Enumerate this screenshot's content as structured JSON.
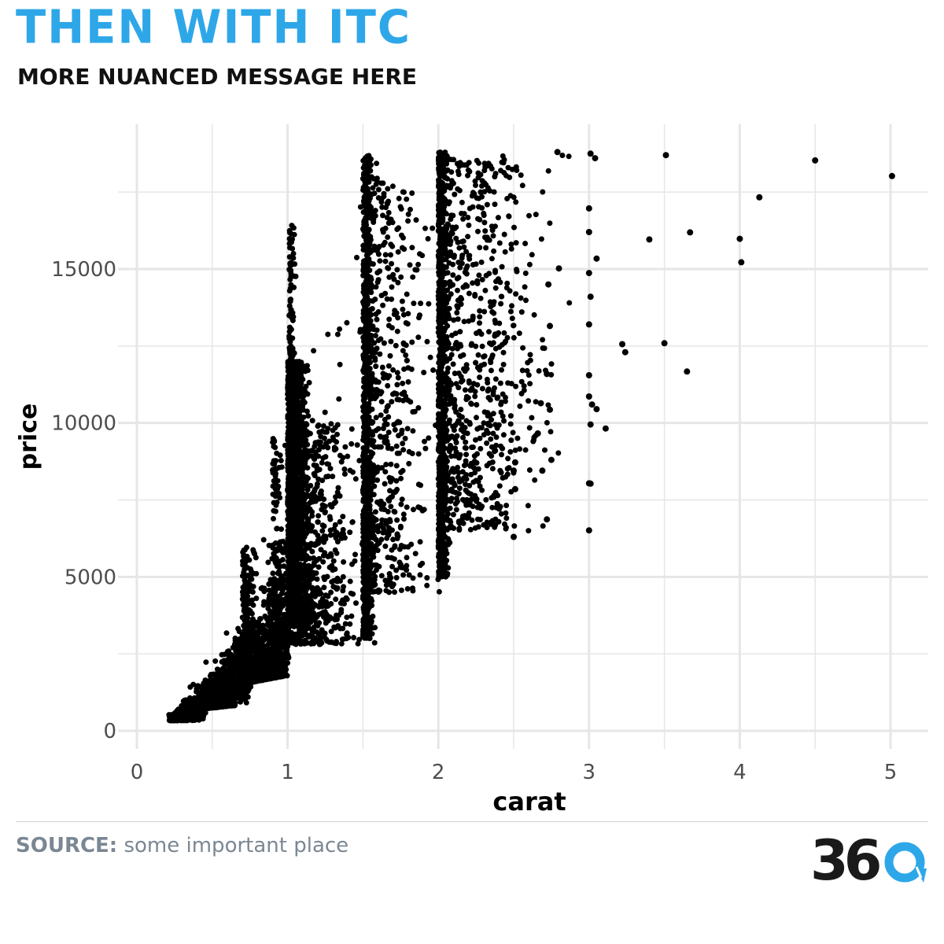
{
  "header": {
    "title": "THEN WITH ITC",
    "subtitle": "MORE NUANCED MESSAGE HERE"
  },
  "footer": {
    "source_label": "SOURCE:",
    "source_text": "some important place",
    "logo_text": "36",
    "logo_icon": "refresh-circle-icon"
  },
  "colors": {
    "title": "#2ea7e8",
    "points": "#000000",
    "grid": "#e6e6e6",
    "axis_text": "#4d4d4d",
    "source": "#7b8793",
    "logo_accent": "#2ea7e8"
  },
  "chart_data": {
    "type": "scatter",
    "xlabel": "carat",
    "ylabel": "price",
    "xlim": [
      0,
      5.2
    ],
    "ylim": [
      0,
      19000
    ],
    "x_ticks": [
      0,
      1,
      2,
      3,
      4,
      5
    ],
    "y_ticks": [
      0,
      5000,
      10000,
      15000
    ],
    "grid": true,
    "legend": "none",
    "outliers": [
      {
        "x": 2.79,
        "y": 18800
      },
      {
        "x": 3.01,
        "y": 18750
      },
      {
        "x": 3.04,
        "y": 18600
      },
      {
        "x": 3.51,
        "y": 18700
      },
      {
        "x": 4.5,
        "y": 18530
      },
      {
        "x": 5.01,
        "y": 18020
      },
      {
        "x": 4.13,
        "y": 17330
      },
      {
        "x": 3.0,
        "y": 16970
      },
      {
        "x": 3.0,
        "y": 16200
      },
      {
        "x": 3.67,
        "y": 16190
      },
      {
        "x": 3.4,
        "y": 15960
      },
      {
        "x": 4.0,
        "y": 15980
      },
      {
        "x": 4.01,
        "y": 15220
      },
      {
        "x": 3.05,
        "y": 15340
      },
      {
        "x": 2.8,
        "y": 15020
      },
      {
        "x": 3.0,
        "y": 14870
      },
      {
        "x": 2.73,
        "y": 14500
      },
      {
        "x": 3.01,
        "y": 14100
      },
      {
        "x": 3.0,
        "y": 13200
      },
      {
        "x": 2.74,
        "y": 13150
      },
      {
        "x": 3.22,
        "y": 12560
      },
      {
        "x": 3.24,
        "y": 12300
      },
      {
        "x": 3.5,
        "y": 12590
      },
      {
        "x": 3.65,
        "y": 11670
      },
      {
        "x": 2.72,
        "y": 11590
      },
      {
        "x": 3.0,
        "y": 11550
      },
      {
        "x": 3.0,
        "y": 10860
      },
      {
        "x": 3.02,
        "y": 10600
      },
      {
        "x": 3.05,
        "y": 10450
      },
      {
        "x": 3.01,
        "y": 9950
      },
      {
        "x": 3.11,
        "y": 9820
      },
      {
        "x": 2.68,
        "y": 10640
      },
      {
        "x": 2.74,
        "y": 10430
      },
      {
        "x": 2.66,
        "y": 9660
      },
      {
        "x": 2.75,
        "y": 8800
      },
      {
        "x": 2.69,
        "y": 8450
      },
      {
        "x": 2.51,
        "y": 8720
      },
      {
        "x": 2.5,
        "y": 8450
      },
      {
        "x": 2.51,
        "y": 7850
      },
      {
        "x": 3.0,
        "y": 8040
      },
      {
        "x": 3.01,
        "y": 8030
      },
      {
        "x": 2.72,
        "y": 6870
      },
      {
        "x": 3.0,
        "y": 6510
      },
      {
        "x": 2.5,
        "y": 6300
      }
    ]
  }
}
